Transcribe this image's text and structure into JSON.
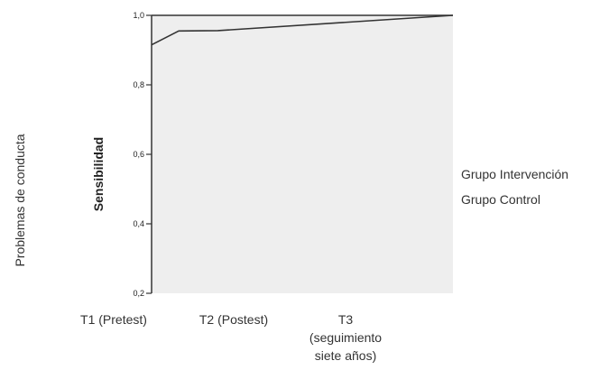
{
  "outer_label": "Problemas de conducta",
  "legend": [
    {
      "label": "Grupo Intervención"
    },
    {
      "label": "Grupo Control"
    }
  ],
  "x_categories": [
    {
      "label": "T1 (Pretest)"
    },
    {
      "label": "T2 (Postest)"
    },
    {
      "label": "T3\n(seguimiento\nsiete años)"
    }
  ],
  "chart_data": {
    "type": "line",
    "title": "",
    "xlabel": "",
    "ylabel": "Sensibilidad",
    "xlim": [
      0,
      1
    ],
    "ylim": [
      0.2,
      1.0
    ],
    "y_ticks": [
      0.2,
      0.4,
      0.6,
      0.8,
      1.0
    ],
    "y_tick_labels": [
      "0,2",
      "0,4",
      "0,6",
      "0,8",
      "1,0"
    ],
    "grid": false,
    "series": [
      {
        "values": [
          {
            "x": 0.0,
            "y": 0.915
          },
          {
            "x": 0.09,
            "y": 0.955
          },
          {
            "x": 0.22,
            "y": 0.956
          },
          {
            "x": 1.0,
            "y": 1.0
          }
        ]
      }
    ],
    "colors": {
      "plot_background": "#eeeeee",
      "line": "#333333",
      "axis": "#333333"
    }
  }
}
